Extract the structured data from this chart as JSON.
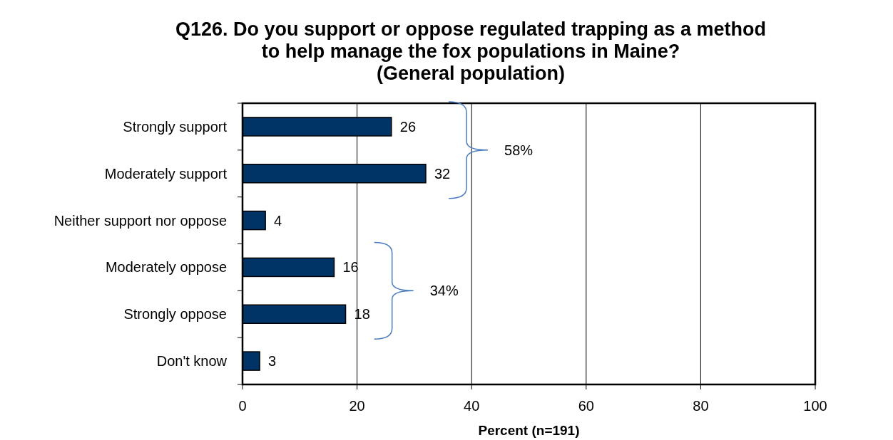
{
  "chart_data": {
    "type": "bar",
    "orientation": "horizontal",
    "title": "Q126. Do you support or oppose regulated trapping as a method\nto help manage the fox populations in Maine?\n(General population)",
    "xlabel": "Percent (n=191)",
    "categories": [
      "Strongly support",
      "Moderately support",
      "Neither support nor oppose",
      "Moderately oppose",
      "Strongly oppose",
      "Don't know"
    ],
    "values": [
      26,
      32,
      4,
      16,
      18,
      3
    ],
    "color": "#003366",
    "data_labels": true,
    "xlim": [
      0,
      100
    ],
    "xticks": [
      0,
      20,
      40,
      60,
      80,
      100
    ],
    "grid": "x",
    "annotations": [
      "58%",
      "34%"
    ]
  }
}
